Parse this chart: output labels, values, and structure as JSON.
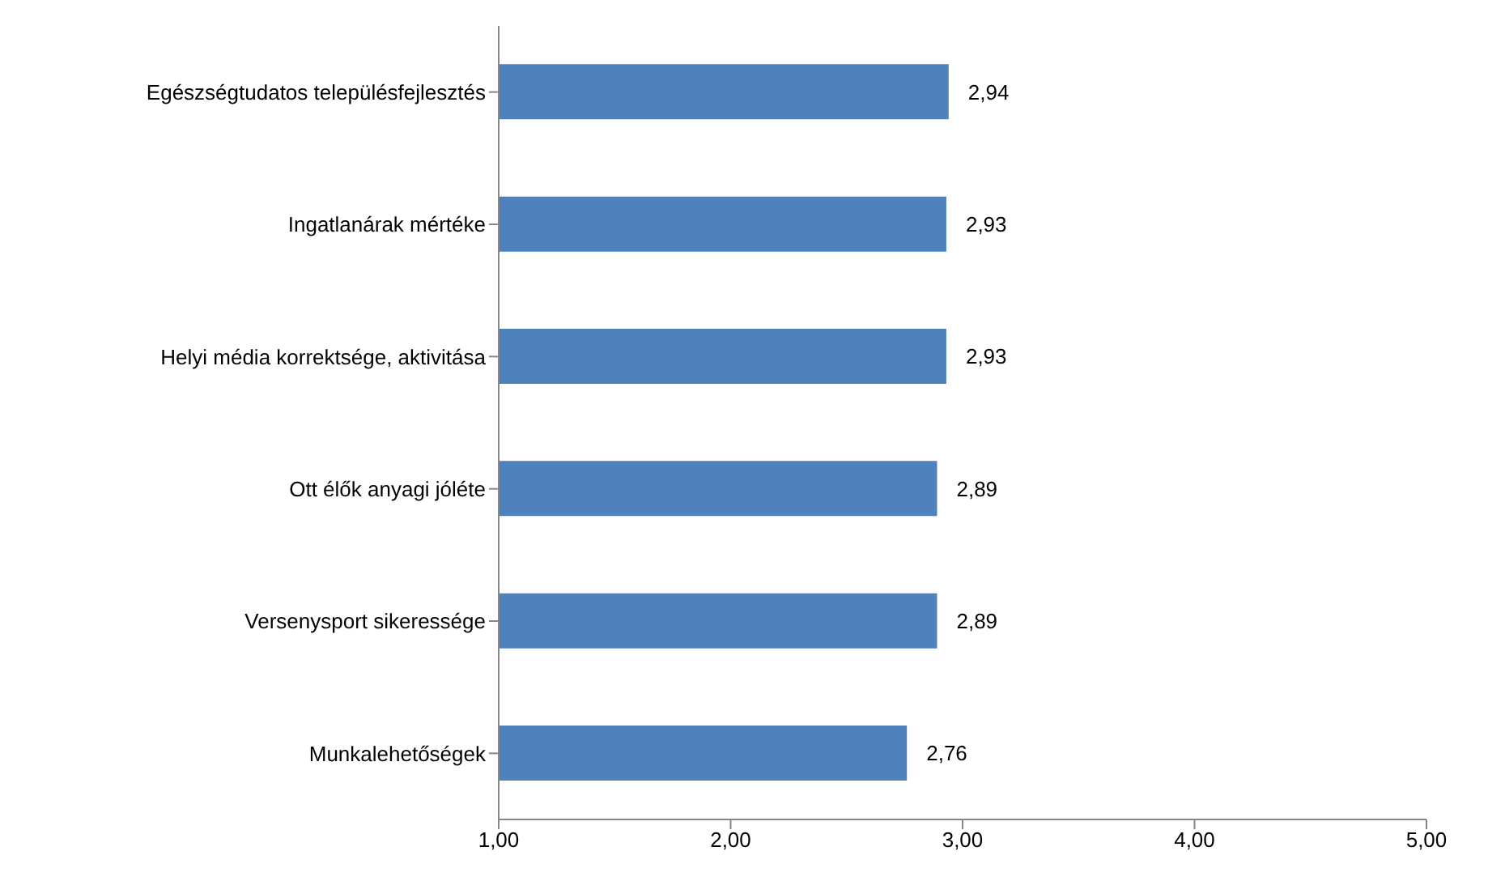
{
  "chart_data": {
    "type": "bar",
    "orientation": "horizontal",
    "categories": [
      "Egészségtudatos településfejlesztés",
      "Ingatlanárak mértéke",
      "Helyi média korrektsége, aktivitása",
      "Ott élők anyagi jóléte",
      "Versenysport sikeressége",
      "Munkalehetőségek"
    ],
    "values": [
      2.94,
      2.93,
      2.93,
      2.89,
      2.89,
      2.76
    ],
    "value_labels": [
      "2,94",
      "2,93",
      "2,93",
      "2,89",
      "2,89",
      "2,76"
    ],
    "color": "#4f81bd",
    "xlim": [
      1,
      5
    ],
    "xticks": [
      {
        "value": 1,
        "label": "1,00"
      },
      {
        "value": 2,
        "label": "2,00"
      },
      {
        "value": 3,
        "label": "3,00"
      },
      {
        "value": 4,
        "label": "4,00"
      },
      {
        "value": 5,
        "label": "5,00"
      }
    ],
    "grid": false,
    "legend": false
  }
}
